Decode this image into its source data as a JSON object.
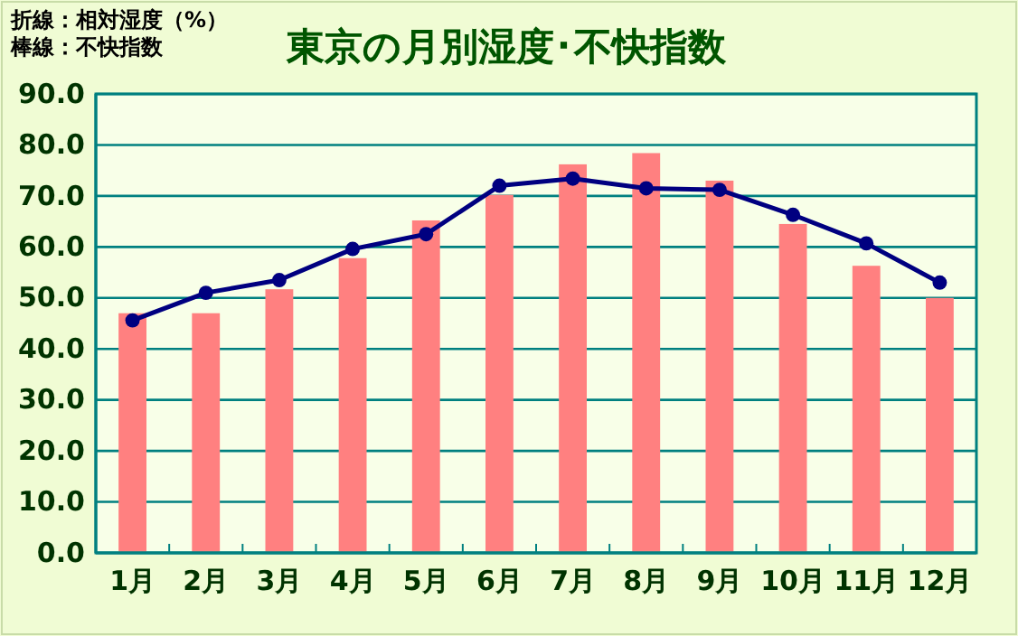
{
  "chart_data": {
    "type": "bar",
    "title": "東京の月別湿度･不快指数",
    "annotations": [
      "折線：相対湿度（%）",
      "棒線：不快指数"
    ],
    "categories": [
      "1月",
      "2月",
      "3月",
      "4月",
      "5月",
      "6月",
      "7月",
      "8月",
      "9月",
      "10月",
      "11月",
      "12月"
    ],
    "series": [
      {
        "color": "#ff8080",
        "values": [
          47.0,
          47.0,
          51.7,
          57.8,
          65.2,
          70.2,
          76.2,
          78.4,
          73.0,
          64.5,
          56.3,
          50.0
        ]
      },
      {
        "type": "line",
        "color": "#000080",
        "values": [
          45.6,
          51.0,
          53.5,
          59.6,
          62.5,
          72.0,
          73.4,
          71.5,
          71.2,
          66.3,
          60.7,
          53.0
        ]
      }
    ],
    "ylim": [
      0,
      90
    ],
    "yticks": [
      {
        "value": 0,
        "label": "0.0"
      },
      {
        "value": 10,
        "label": "10.0"
      },
      {
        "value": 20,
        "label": "20.0"
      },
      {
        "value": 30,
        "label": "30.0"
      },
      {
        "value": 40,
        "label": "40.0"
      },
      {
        "value": 50,
        "label": "50.0"
      },
      {
        "value": 60,
        "label": "60.0"
      },
      {
        "value": 70,
        "label": "70.0"
      },
      {
        "value": 80,
        "label": "80.0"
      },
      {
        "value": 90,
        "label": "90.0"
      }
    ],
    "grid": "y",
    "marker": "circle"
  }
}
